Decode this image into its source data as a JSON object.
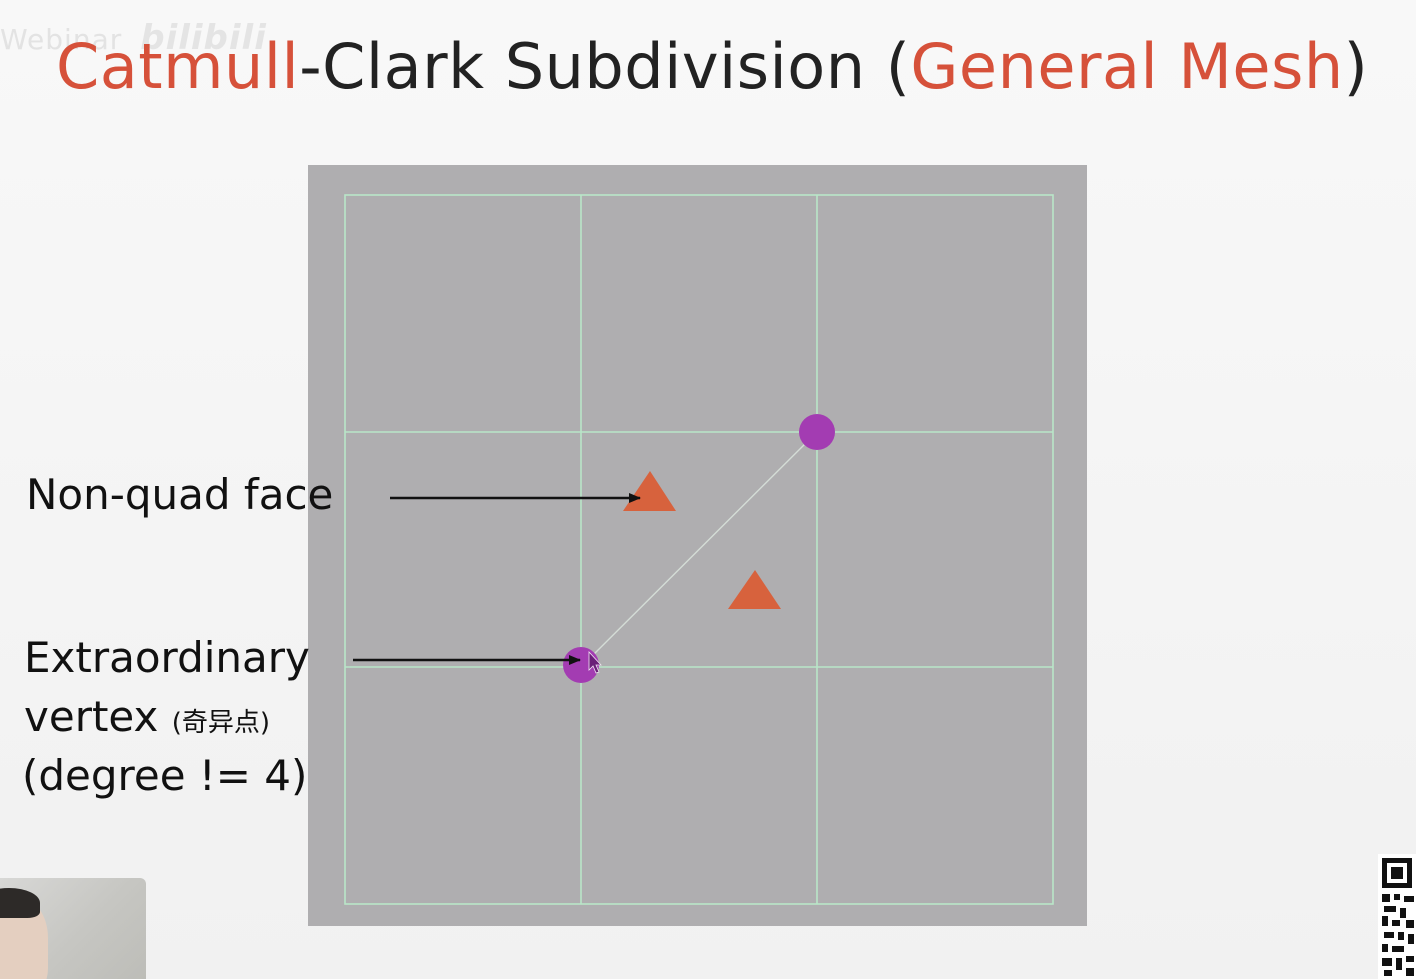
{
  "watermark": {
    "text": "Webinar",
    "logo": "bilibili"
  },
  "title": {
    "part1": "Catmull",
    "part2": "-Clark Subdivision (",
    "part3": "General Mesh",
    "part4": ")"
  },
  "labels": {
    "nonquad": "Non-quad face",
    "extra_line1": "Extraordinary",
    "extra_line2": "vertex",
    "extra_line2_cn": "(奇异点)",
    "extra_line3": "(degree != 4)"
  },
  "colors": {
    "accent": "#d6513a",
    "panel": "#afaeb0",
    "grid": "#b9e6c8",
    "vertex": "#a33cb2",
    "face_marker": "#d7623d",
    "arrow": "#111111"
  },
  "icons": {
    "vertex_marker": "purple-circle",
    "face_marker": "orange-triangle",
    "cursor": "mouse-cursor-icon",
    "qr": "qr-code-icon"
  }
}
